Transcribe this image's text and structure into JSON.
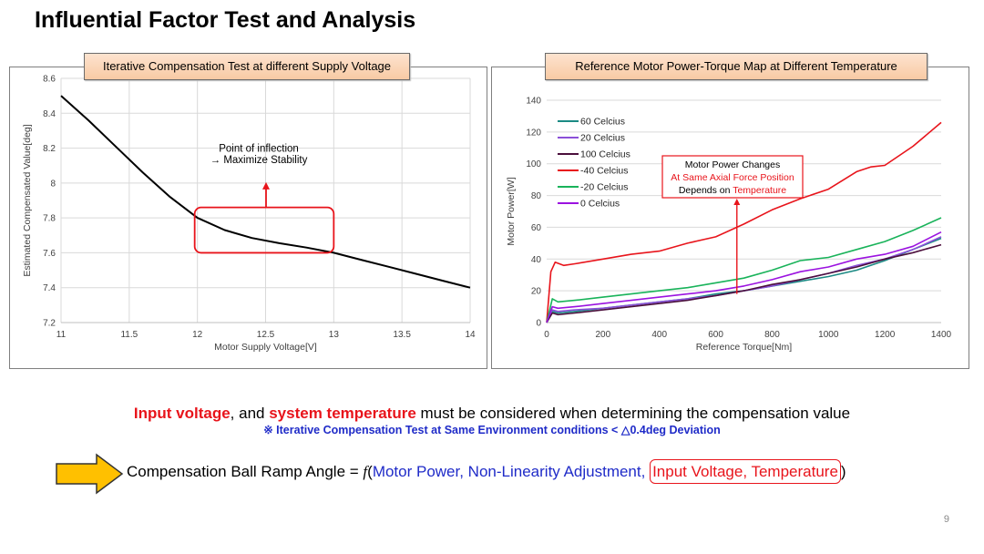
{
  "title": "Influential Factor Test and Analysis",
  "chart_data": [
    {
      "type": "line",
      "header": "Iterative Compensation Test at different Supply Voltage",
      "xlabel": "Motor Supply Voltage[V]",
      "ylabel": "Estimated Compensated Value[deg]",
      "xlim": [
        11,
        14
      ],
      "ylim": [
        7.2,
        8.6
      ],
      "x_ticks": [
        "11",
        "11.5",
        "12",
        "12.5",
        "13",
        "13.5",
        "14"
      ],
      "y_ticks": [
        "7.2",
        "7.4",
        "7.6",
        "7.8",
        "8",
        "8.2",
        "8.4",
        "8.6"
      ],
      "grid": true,
      "series": [
        {
          "color": "#000000",
          "x": [
            11,
            11.2,
            11.4,
            11.6,
            11.8,
            12,
            12.2,
            12.4,
            12.6,
            12.8,
            13,
            13.2,
            13.4,
            13.6,
            13.8,
            14
          ],
          "y": [
            8.5,
            8.36,
            8.21,
            8.06,
            7.92,
            7.8,
            7.73,
            7.685,
            7.655,
            7.63,
            7.6,
            7.56,
            7.52,
            7.48,
            7.44,
            7.4
          ]
        }
      ],
      "annotation": {
        "line1": "Point of inflection",
        "line2": "→ Maximize Stability",
        "box_x": [
          11.98,
          13.0
        ],
        "box_y": [
          7.6,
          7.86
        ],
        "arrow_to_y": 8.0
      }
    },
    {
      "type": "line",
      "header": "Reference Motor Power-Torque Map at Different Temperature",
      "xlabel": "Reference Torque[Nm]",
      "ylabel": "Motor Power[W]",
      "xlim": [
        0,
        1400
      ],
      "ylim": [
        0,
        140
      ],
      "x_ticks": [
        "0",
        "200",
        "400",
        "600",
        "800",
        "1000",
        "1200",
        "1400"
      ],
      "y_ticks": [
        "0",
        "20",
        "40",
        "60",
        "80",
        "100",
        "120",
        "140"
      ],
      "grid": true,
      "legend": "top-left",
      "series": [
        {
          "name": "60 Celcius",
          "color": "#1b8a84",
          "x": [
            0,
            20,
            40,
            100,
            200,
            300,
            400,
            500,
            600,
            700,
            800,
            900,
            1000,
            1100,
            1200,
            1300,
            1400
          ],
          "y": [
            0,
            7,
            6,
            7,
            9,
            11,
            13,
            15,
            18,
            20,
            23,
            26,
            29,
            33,
            39,
            46,
            53
          ]
        },
        {
          "name": "20 Celcius",
          "color": "#8b4fd8",
          "x": [
            0,
            20,
            40,
            100,
            200,
            300,
            400,
            500,
            600,
            700,
            800,
            900,
            1000,
            1100,
            1200,
            1300,
            1400
          ],
          "y": [
            0,
            8,
            7,
            8,
            9,
            11,
            13,
            15,
            17,
            20,
            23,
            27,
            31,
            36,
            40,
            46,
            54
          ]
        },
        {
          "name": "100 Celcius",
          "color": "#4b0f3c",
          "x": [
            0,
            20,
            40,
            100,
            200,
            300,
            400,
            500,
            600,
            700,
            800,
            900,
            1000,
            1100,
            1200,
            1300,
            1400
          ],
          "y": [
            0,
            6,
            5,
            6,
            8,
            10,
            12,
            14,
            17,
            20,
            24,
            27,
            31,
            35,
            40,
            44,
            49
          ]
        },
        {
          "name": "-40 Celcius",
          "color": "#e8141b",
          "x": [
            0,
            15,
            30,
            60,
            100,
            200,
            300,
            400,
            500,
            600,
            700,
            800,
            900,
            1000,
            1100,
            1150,
            1200,
            1300,
            1400
          ],
          "y": [
            0,
            32,
            38,
            36,
            37,
            40,
            43,
            45,
            50,
            54,
            62,
            71,
            78,
            84,
            95,
            98,
            99,
            111,
            126
          ]
        },
        {
          "name": "-20 Celcius",
          "color": "#19b35a",
          "x": [
            0,
            20,
            40,
            100,
            200,
            300,
            400,
            500,
            600,
            700,
            800,
            900,
            1000,
            1100,
            1200,
            1300,
            1400
          ],
          "y": [
            0,
            15,
            13,
            14,
            16,
            18,
            20,
            22,
            25,
            28,
            33,
            39,
            41,
            46,
            51,
            58,
            66
          ]
        },
        {
          "name": "0 Celcius",
          "color": "#9b12e0",
          "x": [
            0,
            20,
            40,
            100,
            200,
            300,
            400,
            500,
            600,
            700,
            800,
            900,
            1000,
            1100,
            1200,
            1300,
            1400
          ],
          "y": [
            0,
            10,
            9,
            10,
            12,
            14,
            16,
            18,
            20,
            23,
            27,
            32,
            35,
            40,
            43,
            48,
            57
          ]
        }
      ],
      "annotation": {
        "line1": "Motor Power Changes",
        "line2": "At Same Axial Force Position",
        "line3_prefix": "Depends on ",
        "line3_highlight": "Temperature",
        "arrow_x": 675,
        "arrow_from_y": 18,
        "arrow_to_y": 80
      }
    }
  ],
  "takeaway": {
    "part1": "Input voltage",
    "part2": ", and ",
    "part3": "system temperature",
    "part4": " must be considered when determining the compensation value"
  },
  "note": "※ Iterative Compensation Test at Same Environment conditions < △0.4deg Deviation",
  "formula": {
    "prefix": "Compensation Ball Ramp Angle = ",
    "func": "f",
    "open": "(",
    "blue_terms": "Motor Power, Non-Linearity Adjustment,",
    "red_terms": "Input Voltage, Temperature",
    "close": ")"
  },
  "page_number": "9"
}
